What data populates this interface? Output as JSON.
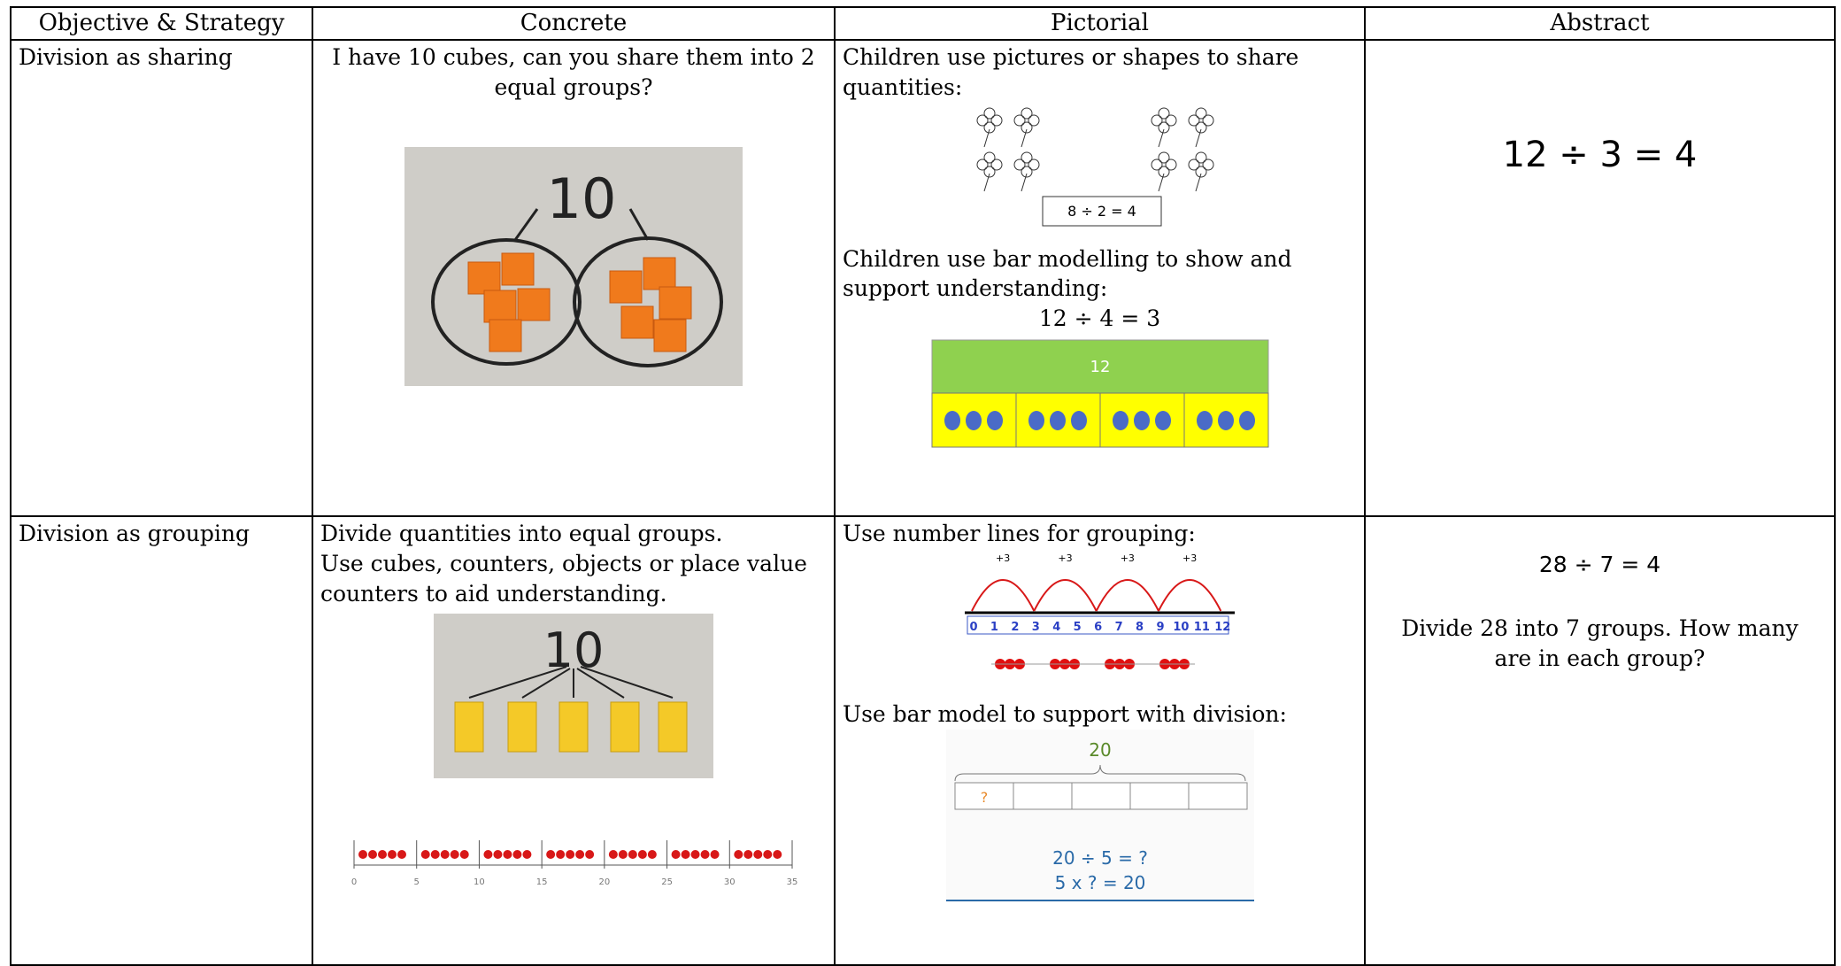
{
  "table": {
    "header": [
      "Objective & Strategy",
      "Concrete",
      "Pictorial",
      "Abstract"
    ],
    "rows": [
      {
        "objective": "Division as sharing",
        "concrete": {
          "text": "I have 10 cubes, can you share them into 2 equal groups?",
          "figure_label": "10"
        },
        "pictorial": {
          "text1": "Children use pictures or shapes to share quantities:",
          "figure_equation": "8 ÷ 2 = 4",
          "text2": "Children use bar modelling to show and support understanding:",
          "equation": "12 ÷ 4 = 3",
          "bar_total": "12"
        },
        "abstract": [
          "12 ÷ 3 = 4"
        ]
      },
      {
        "objective": "Division as grouping",
        "concrete": {
          "text": [
            "Divide quantities into equal groups.",
            "Use cubes, counters, objects or place value counters to aid understanding."
          ],
          "figure_label": "10",
          "number_line": [
            "0",
            "5",
            "10",
            "15",
            "20",
            "25",
            "30",
            "35"
          ]
        },
        "pictorial": {
          "text1": "Use number lines for grouping:",
          "jumps": [
            "+3",
            "+3",
            "+3",
            "+3"
          ],
          "number_line": [
            "0",
            "1",
            "2",
            "3",
            "4",
            "5",
            "6",
            "7",
            "8",
            "9",
            "10",
            "11",
            "12"
          ],
          "text2": "Use bar model to support with division:",
          "bar_total": "20",
          "bar_cell": "?",
          "equations": [
            "20 ÷ 5 = ?",
            "5 x ? = 20"
          ]
        },
        "abstract": [
          "28 ÷ 7 = 4",
          "Divide 28 into 7 groups. How many are in each group?"
        ]
      }
    ]
  }
}
